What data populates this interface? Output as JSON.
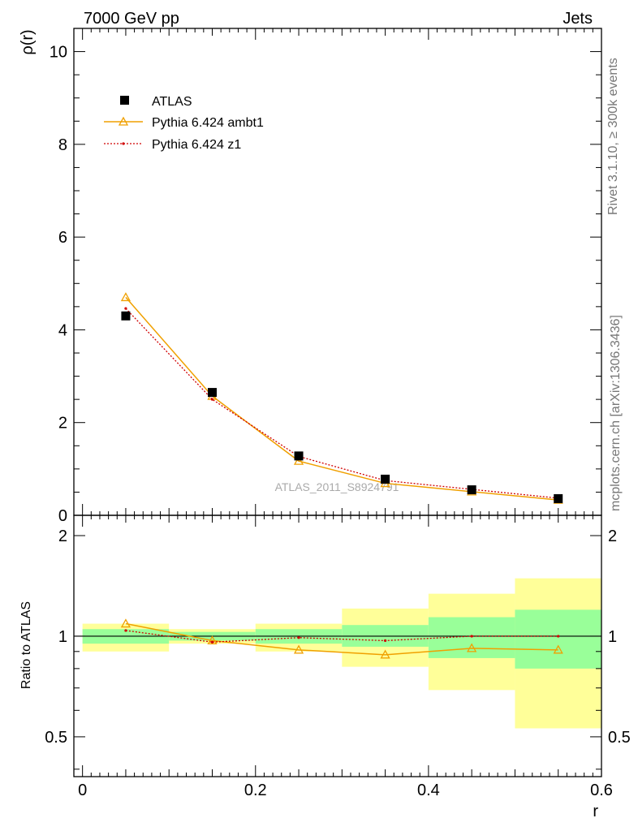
{
  "header": {
    "left": "7000 GeV pp",
    "right": "Jets"
  },
  "side_text": {
    "top": "Rivet 3.1.10, ≥ 300k events",
    "bottom": "mcplots.cern.ch [arXiv:1306.3436]"
  },
  "watermark": "ATLAS_2011_S8924791",
  "colors": {
    "ambt1": "#f0a000",
    "z1": "#d00000",
    "data": "#000000",
    "band_inner": "#99ff99",
    "band_outer": "#ffff99"
  },
  "chart_data": [
    {
      "type": "line",
      "panel": "main",
      "ylabel": "ρ(r)",
      "xlabel": "r",
      "xlim": [
        -0.01,
        0.6
      ],
      "ylim": [
        0,
        10.5
      ],
      "y_ticks": [
        0,
        2,
        4,
        6,
        8,
        10
      ],
      "y_tick_labels": [
        "0",
        "2",
        "4",
        "6",
        "8",
        "10"
      ],
      "legend": [
        "ATLAS",
        "Pythia 6.424 ambt1",
        "Pythia 6.424 z1"
      ],
      "x": [
        0.05,
        0.15,
        0.25,
        0.35,
        0.45,
        0.55
      ],
      "series": [
        {
          "name": "ATLAS",
          "values": [
            4.3,
            2.65,
            1.28,
            0.78,
            0.55,
            0.36
          ]
        },
        {
          "name": "Pythia 6.424 ambt1",
          "values": [
            4.7,
            2.57,
            1.17,
            0.69,
            0.51,
            0.33
          ]
        },
        {
          "name": "Pythia 6.424 z1",
          "values": [
            4.46,
            2.5,
            1.27,
            0.75,
            0.56,
            0.37
          ]
        }
      ]
    },
    {
      "type": "line",
      "panel": "ratio",
      "ylabel": "Ratio to ATLAS",
      "xlabel": "r",
      "xlim": [
        -0.01,
        0.6
      ],
      "ylim": [
        0.38,
        2.3
      ],
      "y_ticks": [
        0.5,
        1,
        2
      ],
      "y_tick_labels": [
        "0.5",
        "1",
        "2"
      ],
      "x_ticks": [
        0,
        0.2,
        0.4,
        0.6
      ],
      "x_tick_labels": [
        "0",
        "0.2",
        "0.4",
        "0.6"
      ],
      "bins": [
        [
          0.0,
          0.1
        ],
        [
          0.1,
          0.2
        ],
        [
          0.2,
          0.3
        ],
        [
          0.3,
          0.4
        ],
        [
          0.4,
          0.5
        ],
        [
          0.5,
          0.6
        ]
      ],
      "band_inner": [
        [
          0.95,
          1.05
        ],
        [
          0.97,
          1.03
        ],
        [
          0.95,
          1.05
        ],
        [
          0.93,
          1.08
        ],
        [
          0.86,
          1.14
        ],
        [
          0.8,
          1.2
        ]
      ],
      "band_outer": [
        [
          0.9,
          1.09
        ],
        [
          0.95,
          1.05
        ],
        [
          0.9,
          1.09
        ],
        [
          0.81,
          1.21
        ],
        [
          0.69,
          1.34
        ],
        [
          0.53,
          1.49
        ]
      ],
      "x": [
        0.05,
        0.15,
        0.25,
        0.35,
        0.45,
        0.55
      ],
      "series": [
        {
          "name": "Pythia 6.424 ambt1",
          "values": [
            1.09,
            0.97,
            0.91,
            0.88,
            0.92,
            0.91
          ]
        },
        {
          "name": "Pythia 6.424 z1",
          "values": [
            1.04,
            0.96,
            0.99,
            0.97,
            1.0,
            1.0
          ]
        }
      ]
    }
  ]
}
